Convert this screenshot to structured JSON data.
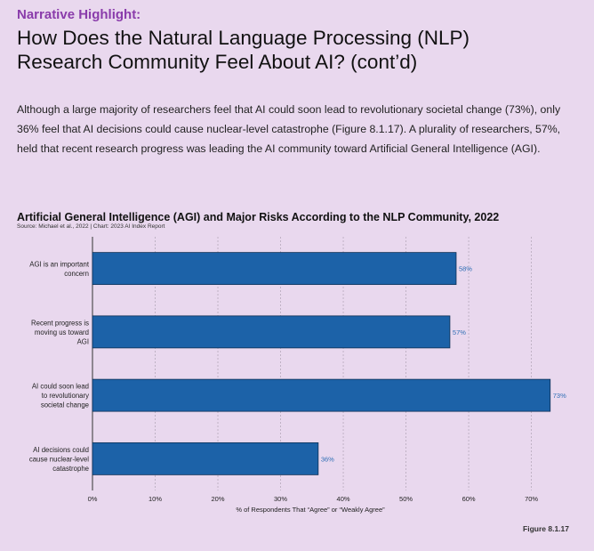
{
  "header": {
    "kicker": "Narrative Highlight:",
    "title_line1": "How Does the Natural Language Processing (NLP)",
    "title_line2": "Research Community Feel About AI? (cont’d)"
  },
  "body_text": "Although a large majority of researchers feel that AI could soon lead to revolutionary societal change (73%), only 36% feel that AI decisions could cause nuclear-level catastrophe (Figure 8.1.17). A plurality of researchers, 57%, held that recent research progress was leading the AI community toward Artificial General Intelligence (AGI).",
  "chart_header": {
    "title": "Artificial General Intelligence (AGI) and Major Risks According to the NLP Community, 2022",
    "source": "Source: Michael et al., 2022 | Chart: 2023 AI Index Report"
  },
  "figure_label": "Figure 8.1.17",
  "chart_data": {
    "type": "bar",
    "orientation": "horizontal",
    "categories": [
      [
        "AGI is an important",
        "concern"
      ],
      [
        "Recent progress is",
        "moving us toward",
        "AGI"
      ],
      [
        "AI could soon lead",
        "to revolutionary",
        "societal change"
      ],
      [
        "AI decisions could",
        "cause nuclear-level",
        "catastrophe"
      ]
    ],
    "values": [
      58,
      57,
      73,
      36
    ],
    "value_labels": [
      "58%",
      "57%",
      "73%",
      "36%"
    ],
    "xlabel": "% of Respondents That “Agree” or “Weakly Agree”",
    "xlim": [
      0,
      78
    ],
    "xticks": [
      0,
      10,
      20,
      30,
      40,
      50,
      60,
      70
    ],
    "xtick_labels": [
      "0%",
      "10%",
      "20%",
      "30%",
      "40%",
      "50%",
      "60%",
      "70%"
    ],
    "grid": "vertical dashed",
    "colors": {
      "bar": "#1c62a8",
      "bar_edge": "#0d2f55",
      "value_label": "#2f6fb5",
      "grid": "#b5a9bb"
    }
  }
}
